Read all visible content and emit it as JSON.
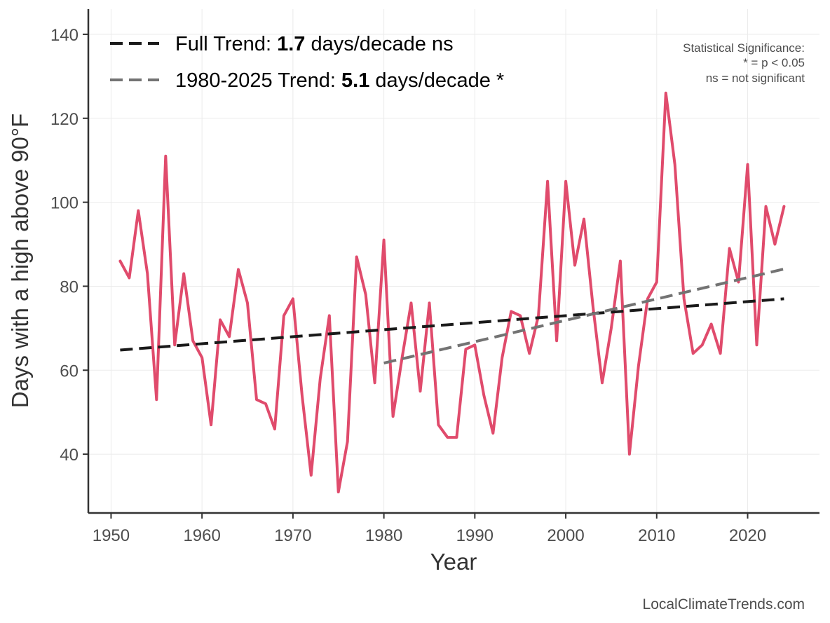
{
  "chart_data": {
    "type": "line",
    "title": "",
    "xlabel": "Year",
    "ylabel": "Days with a high above 90°F",
    "xlim": [
      1947.5,
      2027.9
    ],
    "ylim": [
      26,
      146
    ],
    "xticks": [
      1950,
      1960,
      1970,
      1980,
      1990,
      2000,
      2010,
      2020
    ],
    "xtick_labels": [
      "1950",
      "1960",
      "1970",
      "1980",
      "1990",
      "2000",
      "2010",
      "2020"
    ],
    "yticks": [
      40,
      60,
      80,
      100,
      120,
      140
    ],
    "ytick_labels": [
      "40",
      "60",
      "80",
      "100",
      "120",
      "140"
    ],
    "grid": true,
    "legend_position": "top-left",
    "series": [
      {
        "color": "#e04b6c",
        "x": [
          1951,
          1952,
          1953,
          1954,
          1955,
          1956,
          1957,
          1958,
          1959,
          1960,
          1961,
          1962,
          1963,
          1964,
          1965,
          1966,
          1967,
          1968,
          1969,
          1970,
          1971,
          1972,
          1973,
          1974,
          1975,
          1976,
          1977,
          1978,
          1979,
          1980,
          1981,
          1982,
          1983,
          1984,
          1985,
          1986,
          1987,
          1988,
          1989,
          1990,
          1991,
          1992,
          1993,
          1994,
          1995,
          1996,
          1997,
          1998,
          1999,
          2000,
          2001,
          2002,
          2003,
          2004,
          2005,
          2006,
          2007,
          2008,
          2009,
          2010,
          2011,
          2012,
          2013,
          2014,
          2015,
          2016,
          2017,
          2018,
          2019,
          2020,
          2021,
          2022,
          2023,
          2024
        ],
        "values": [
          86,
          82,
          98,
          83,
          53,
          111,
          66,
          83,
          67,
          63,
          47,
          72,
          68,
          84,
          76,
          53,
          52,
          46,
          73,
          77,
          54,
          35,
          58,
          73,
          31,
          43,
          87,
          78,
          57,
          91,
          49,
          63,
          76,
          55,
          76,
          47,
          44,
          44,
          65,
          66,
          54,
          45,
          63,
          74,
          73,
          64,
          73,
          105,
          67,
          105,
          85,
          96,
          75,
          57,
          70,
          86,
          40,
          61,
          77,
          81,
          126,
          109,
          77,
          64,
          66,
          71,
          64,
          89,
          81,
          109,
          66,
          99,
          90,
          99
        ]
      },
      {
        "name_parts": [
          "Full Trend: ",
          "1.7",
          " days/decade ns"
        ],
        "color": "#1a1a1a",
        "dashed": true,
        "x": [
          1951,
          2024
        ],
        "values": [
          64.8,
          77.0
        ]
      },
      {
        "name_parts": [
          "1980-2025 Trend: ",
          "5.1",
          " days/decade *"
        ],
        "color": "#737373",
        "dashed": true,
        "x": [
          1980,
          2024
        ],
        "values": [
          61.7,
          84.1
        ]
      }
    ],
    "annotation": [
      "Statistical Significance:",
      "* = p < 0.05",
      "ns = not significant"
    ],
    "credit": "LocalClimateTrends.com"
  }
}
